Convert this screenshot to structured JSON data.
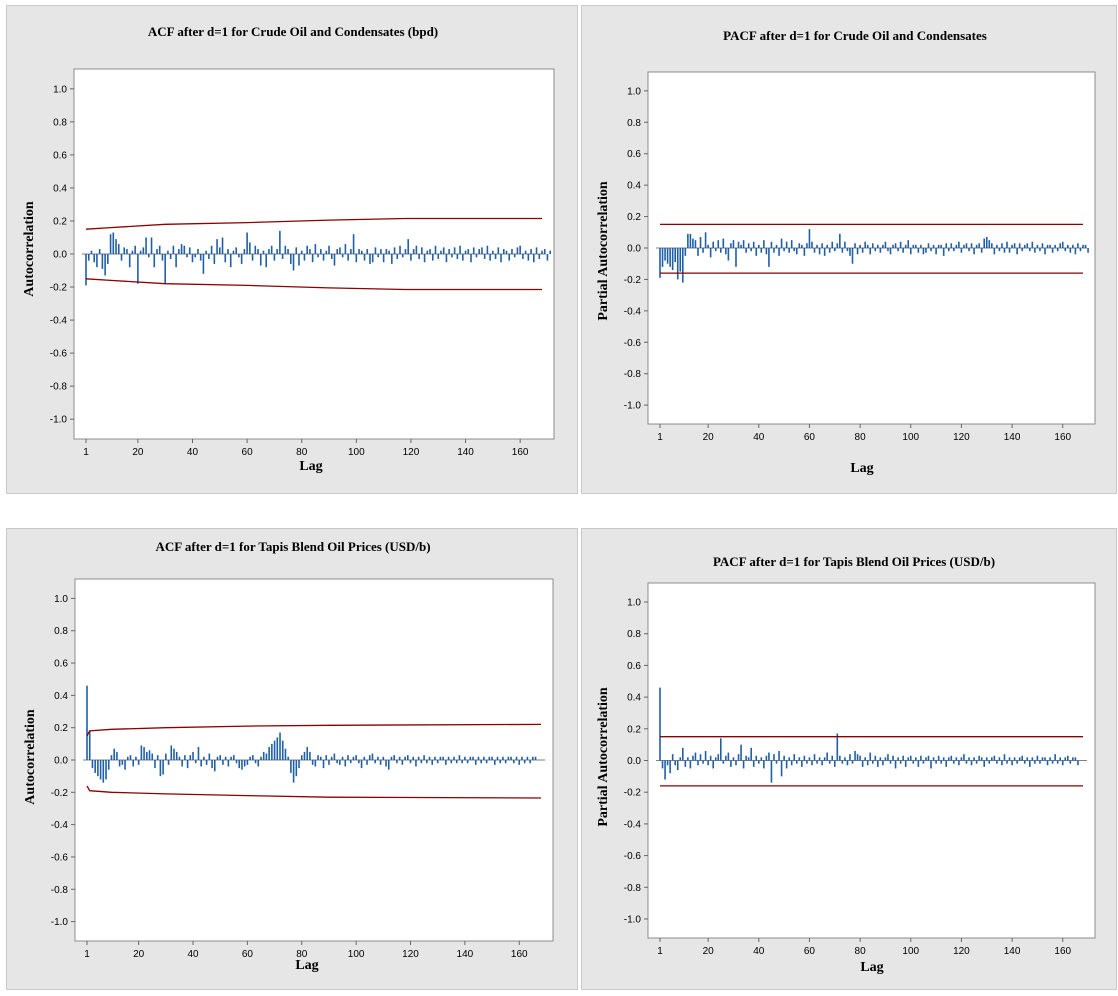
{
  "chart_data": [
    {
      "type": "bar",
      "title": "ACF after d=1 for Crude Oil and Condensates (bpd)",
      "xlabel": "Lag",
      "ylabel": "Autocorrelation",
      "xlim": [
        1,
        168
      ],
      "ylim": [
        -1.0,
        1.0
      ],
      "xticks": [
        "1",
        "20",
        "40",
        "60",
        "80",
        "100",
        "120",
        "140",
        "160"
      ],
      "yticks": [
        "1.0",
        "0.8",
        "0.6",
        "0.4",
        "0.2",
        "0.0",
        "-0.2",
        "-0.4",
        "-0.6",
        "-0.8",
        "-1.0"
      ],
      "grid": false,
      "bar_color": "#1f5fa8",
      "limit_color": "#8b0000",
      "upper_limit": [
        [
          1,
          0.15
        ],
        [
          10,
          0.16
        ],
        [
          30,
          0.18
        ],
        [
          60,
          0.19
        ],
        [
          90,
          0.205
        ],
        [
          118,
          0.215
        ],
        [
          168,
          0.215
        ]
      ],
      "lower_limit": [
        [
          1,
          -0.15
        ],
        [
          10,
          -0.16
        ],
        [
          30,
          -0.18
        ],
        [
          60,
          -0.19
        ],
        [
          90,
          -0.205
        ],
        [
          118,
          -0.215
        ],
        [
          168,
          -0.215
        ]
      ],
      "values": [
        -0.19,
        -0.04,
        0.02,
        -0.05,
        -0.08,
        0.03,
        -0.09,
        -0.13,
        -0.06,
        0.12,
        0.13,
        0.09,
        0.06,
        -0.04,
        0.04,
        0.03,
        -0.08,
        0.02,
        0.05,
        -0.18,
        0.02,
        0.04,
        0.1,
        -0.02,
        0.1,
        -0.08,
        0.03,
        0.05,
        -0.04,
        -0.18,
        0.02,
        -0.03,
        0.05,
        -0.08,
        0.03,
        0.06,
        0.05,
        -0.02,
        0.04,
        -0.05,
        -0.02,
        0.03,
        -0.04,
        -0.12,
        0.02,
        -0.03,
        0.05,
        -0.06,
        0.09,
        0.04,
        0.1,
        -0.05,
        0.03,
        -0.08,
        0.02,
        0.04,
        -0.02,
        -0.06,
        0.03,
        0.13,
        0.07,
        -0.04,
        0.05,
        0.03,
        -0.07,
        0.02,
        -0.08,
        0.03,
        0.05,
        -0.04,
        0.03,
        0.14,
        -0.03,
        0.05,
        0.03,
        -0.06,
        -0.1,
        0.04,
        -0.07,
        0.02,
        -0.04,
        0.05,
        0.03,
        -0.05,
        0.06,
        -0.02,
        0.03,
        -0.04,
        0.02,
        0.05,
        -0.03,
        -0.07,
        0.03,
        0.04,
        -0.02,
        0.06,
        -0.04,
        0.03,
        0.12,
        -0.05,
        0.03,
        0.02,
        -0.04,
        0.03,
        -0.06,
        -0.05,
        0.04,
        -0.02,
        0.03,
        -0.05,
        0.03,
        0.02,
        -0.06,
        0.04,
        -0.03,
        0.05,
        -0.02,
        0.03,
        0.09,
        -0.04,
        0.03,
        0.05,
        -0.03,
        0.04,
        -0.05,
        0.02,
        0.03,
        -0.04,
        0.05,
        -0.03,
        0.02,
        0.04,
        -0.05,
        0.03,
        -0.02,
        0.04,
        -0.03,
        0.05,
        -0.04,
        0.02,
        0.03,
        -0.05,
        0.04,
        -0.02,
        0.03,
        0.04,
        -0.03,
        0.05,
        -0.04,
        0.02,
        -0.03,
        0.04,
        -0.05,
        0.03,
        0.02,
        -0.04,
        0.03,
        -0.02,
        0.04,
        0.05,
        -0.03,
        0.02,
        -0.04,
        0.03,
        -0.05,
        0.04,
        -0.03,
        0.02,
        0.03,
        -0.04,
        0.02
      ]
    },
    {
      "type": "bar",
      "title": "PACF after d=1 for Crude Oil and Condensates",
      "xlabel": "Lag",
      "ylabel": "Partial Autocorrelation",
      "xlim": [
        1,
        168
      ],
      "ylim": [
        -1.0,
        1.0
      ],
      "xticks": [
        "1",
        "20",
        "40",
        "60",
        "80",
        "100",
        "120",
        "140",
        "160"
      ],
      "yticks": [
        "1.0",
        "0.8",
        "0.6",
        "0.4",
        "0.2",
        "0.0",
        "-0.2",
        "-0.4",
        "-0.6",
        "-0.8",
        "-1.0"
      ],
      "grid": false,
      "bar_color": "#1f5fa8",
      "limit_color": "#8b0000",
      "upper_limit": [
        [
          1,
          0.15
        ],
        [
          168,
          0.15
        ]
      ],
      "lower_limit": [
        [
          1,
          -0.16
        ],
        [
          168,
          -0.16
        ]
      ],
      "values": [
        -0.19,
        -0.12,
        -0.08,
        -0.1,
        -0.12,
        -0.14,
        -0.09,
        -0.2,
        -0.15,
        -0.22,
        -0.05,
        0.09,
        0.09,
        0.06,
        0.05,
        -0.05,
        0.07,
        -0.03,
        0.1,
        0.02,
        -0.06,
        0.04,
        -0.02,
        0.05,
        -0.03,
        0.06,
        -0.04,
        -0.08,
        0.03,
        0.05,
        -0.12,
        0.04,
        0.02,
        0.05,
        -0.03,
        0.03,
        -0.02,
        0.04,
        -0.05,
        0.02,
        -0.03,
        0.05,
        -0.04,
        -0.12,
        0.04,
        -0.03,
        0.02,
        -0.05,
        0.06,
        -0.02,
        0.04,
        -0.03,
        0.05,
        -0.02,
        -0.04,
        0.03,
        0.02,
        -0.05,
        0.03,
        0.12,
        0.04,
        -0.03,
        0.02,
        -0.04,
        0.03,
        -0.05,
        0.02,
        -0.03,
        0.04,
        -0.02,
        0.03,
        0.09,
        -0.03,
        0.04,
        -0.02,
        -0.05,
        -0.1,
        0.03,
        -0.04,
        0.02,
        -0.03,
        0.04,
        0.02,
        -0.04,
        0.03,
        -0.02,
        0.02,
        -0.03,
        0.02,
        0.04,
        -0.02,
        -0.04,
        0.02,
        0.03,
        -0.02,
        0.04,
        -0.03,
        0.02,
        0.05,
        -0.04,
        0.02,
        0.02,
        -0.03,
        0.02,
        -0.04,
        -0.03,
        0.03,
        -0.02,
        0.02,
        -0.04,
        0.02,
        0.02,
        -0.05,
        0.03,
        -0.02,
        0.03,
        -0.02,
        0.02,
        0.04,
        -0.03,
        0.02,
        0.03,
        -0.02,
        0.03,
        -0.04,
        0.02,
        0.03,
        -0.03,
        0.06,
        0.07,
        0.05,
        0.03,
        -0.04,
        0.02,
        -0.02,
        0.03,
        -0.03,
        0.04,
        -0.03,
        0.02,
        0.03,
        -0.04,
        0.03,
        -0.02,
        0.02,
        0.03,
        -0.02,
        0.04,
        -0.03,
        0.02,
        -0.02,
        0.03,
        -0.04,
        0.02,
        0.02,
        -0.03,
        0.02,
        -0.02,
        0.03,
        0.04,
        -0.02,
        0.02,
        -0.03,
        0.02,
        -0.04,
        0.03,
        -0.02,
        0.02,
        0.02,
        -0.03
      ]
    },
    {
      "type": "bar",
      "title": "ACF after d=1 for Tapis Blend Oil Prices (USD/b)",
      "xlabel": "Lag",
      "ylabel": "Autocorrelation",
      "xlim": [
        1,
        168
      ],
      "ylim": [
        -1.0,
        1.0
      ],
      "xticks": [
        "1",
        "20",
        "40",
        "60",
        "80",
        "100",
        "120",
        "140",
        "160"
      ],
      "yticks": [
        "1.0",
        "0.8",
        "0.6",
        "0.4",
        "0.2",
        "0.0",
        "-0.2",
        "-0.4",
        "-0.6",
        "-0.8",
        "-1.0"
      ],
      "grid": false,
      "bar_color": "#1f5fa8",
      "limit_color": "#8b0000",
      "upper_limit": [
        [
          1,
          0.15
        ],
        [
          2,
          0.18
        ],
        [
          10,
          0.19
        ],
        [
          30,
          0.2
        ],
        [
          60,
          0.21
        ],
        [
          90,
          0.215
        ],
        [
          168,
          0.22
        ]
      ],
      "lower_limit": [
        [
          1,
          -0.16
        ],
        [
          2,
          -0.19
        ],
        [
          10,
          -0.2
        ],
        [
          30,
          -0.21
        ],
        [
          60,
          -0.22
        ],
        [
          90,
          -0.23
        ],
        [
          168,
          -0.235
        ]
      ],
      "values": [
        0.46,
        0.18,
        -0.05,
        -0.08,
        -0.1,
        -0.12,
        -0.14,
        -0.12,
        -0.06,
        0.03,
        0.07,
        0.05,
        -0.04,
        -0.03,
        -0.06,
        0.02,
        0.03,
        -0.04,
        0.02,
        -0.03,
        0.09,
        0.08,
        0.05,
        0.06,
        0.04,
        -0.05,
        0.03,
        -0.1,
        -0.09,
        0.04,
        -0.03,
        0.09,
        0.07,
        0.05,
        0.02,
        -0.04,
        0.03,
        -0.05,
        0.03,
        0.05,
        -0.02,
        0.08,
        -0.04,
        0.02,
        -0.03,
        0.04,
        -0.05,
        -0.07,
        0.02,
        0.03,
        -0.03,
        0.02,
        -0.04,
        0.02,
        0.03,
        -0.02,
        -0.05,
        -0.06,
        -0.04,
        -0.03,
        0.02,
        0.03,
        -0.02,
        -0.04,
        0.02,
        0.05,
        0.04,
        0.08,
        0.1,
        0.12,
        0.14,
        0.17,
        0.12,
        0.07,
        0.02,
        -0.08,
        -0.14,
        -0.1,
        -0.05,
        0.03,
        0.05,
        0.08,
        0.05,
        -0.03,
        -0.04,
        0.03,
        0.02,
        -0.05,
        0.03,
        -0.03,
        0.02,
        0.04,
        -0.02,
        -0.03,
        0.02,
        -0.04,
        0.03,
        -0.02,
        0.02,
        0.03,
        -0.02,
        -0.05,
        0.02,
        -0.03,
        0.03,
        0.04,
        -0.02,
        0.02,
        -0.03,
        0.02,
        -0.04,
        -0.06,
        0.02,
        0.03,
        -0.02,
        0.02,
        -0.03,
        0.02,
        0.03,
        -0.02,
        0.02,
        -0.04,
        0.02,
        -0.02,
        0.03,
        -0.02,
        0.02,
        -0.03,
        0.02,
        -0.02,
        0.02,
        0.02,
        -0.03,
        0.02,
        -0.02,
        0.02,
        -0.02,
        0.03,
        -0.02,
        0.02,
        -0.02,
        0.02,
        0.02,
        -0.03,
        0.02,
        -0.02,
        0.02,
        -0.02,
        0.02,
        0.02,
        -0.03,
        0.02,
        -0.02,
        0.02,
        -0.02,
        0.02,
        0.02,
        -0.02,
        0.02,
        -0.03,
        0.02,
        -0.02,
        0.02,
        -0.02,
        0.02,
        0.02
      ]
    },
    {
      "type": "bar",
      "title": "PACF after d=1 for Tapis Blend Oil Prices (USD/b)",
      "xlabel": "Lag",
      "ylabel": "Partial Autocorrelation",
      "xlim": [
        1,
        168
      ],
      "ylim": [
        -1.0,
        1.0
      ],
      "xticks": [
        "1",
        "20",
        "40",
        "60",
        "80",
        "100",
        "120",
        "140",
        "160"
      ],
      "yticks": [
        "1.0",
        "0.8",
        "0.6",
        "0.4",
        "0.2",
        "0.0",
        "-0.2",
        "-0.4",
        "-0.6",
        "-0.8",
        "-1.0"
      ],
      "grid": false,
      "bar_color": "#1f5fa8",
      "limit_color": "#8b0000",
      "upper_limit": [
        [
          1,
          0.15
        ],
        [
          168,
          0.15
        ]
      ],
      "lower_limit": [
        [
          1,
          -0.16
        ],
        [
          168,
          -0.16
        ]
      ],
      "values": [
        0.46,
        -0.05,
        -0.12,
        -0.03,
        -0.08,
        0.04,
        -0.03,
        -0.06,
        0.02,
        0.08,
        -0.04,
        0.02,
        -0.05,
        0.03,
        0.05,
        -0.03,
        0.04,
        -0.02,
        0.06,
        -0.03,
        0.03,
        -0.05,
        0.02,
        0.04,
        0.14,
        -0.02,
        0.03,
        0.05,
        -0.04,
        0.02,
        -0.03,
        0.04,
        0.1,
        -0.05,
        0.03,
        0.02,
        0.08,
        -0.04,
        0.03,
        -0.02,
        0.02,
        -0.05,
        0.03,
        0.05,
        -0.14,
        0.04,
        -0.02,
        0.06,
        -0.1,
        0.03,
        -0.05,
        0.02,
        -0.03,
        0.04,
        -0.02,
        0.02,
        -0.04,
        0.03,
        -0.02,
        0.02,
        -0.03,
        0.04,
        -0.02,
        0.02,
        -0.03,
        0.02,
        0.05,
        -0.02,
        0.03,
        -0.04,
        0.17,
        0.03,
        -0.02,
        0.02,
        -0.03,
        0.04,
        -0.02,
        0.06,
        0.04,
        0.03,
        -0.04,
        0.02,
        -0.03,
        0.05,
        -0.02,
        0.03,
        -0.04,
        0.02,
        -0.03,
        0.02,
        0.04,
        -0.02,
        0.03,
        -0.05,
        0.02,
        -0.02,
        0.03,
        -0.04,
        0.02,
        0.03,
        -0.02,
        0.02,
        -0.04,
        0.03,
        -0.02,
        0.02,
        0.03,
        -0.05,
        0.02,
        -0.02,
        0.03,
        -0.02,
        0.02,
        -0.04,
        0.02,
        0.03,
        -0.02,
        0.02,
        -0.03,
        0.02,
        0.04,
        -0.02,
        0.02,
        -0.03,
        0.02,
        -0.02,
        0.03,
        0.02,
        -0.04,
        0.02,
        -0.02,
        0.02,
        0.03,
        -0.02,
        0.02,
        -0.03,
        0.04,
        -0.02,
        0.02,
        -0.03,
        0.02,
        -0.02,
        0.02,
        0.03,
        -0.02,
        0.02,
        -0.04,
        0.02,
        -0.02,
        0.03,
        -0.02,
        0.02,
        0.02,
        -0.03,
        0.02,
        -0.02,
        0.04,
        -0.02,
        0.02,
        -0.03,
        0.02,
        0.03,
        -0.02,
        0.02,
        0.02,
        -0.03
      ]
    }
  ]
}
